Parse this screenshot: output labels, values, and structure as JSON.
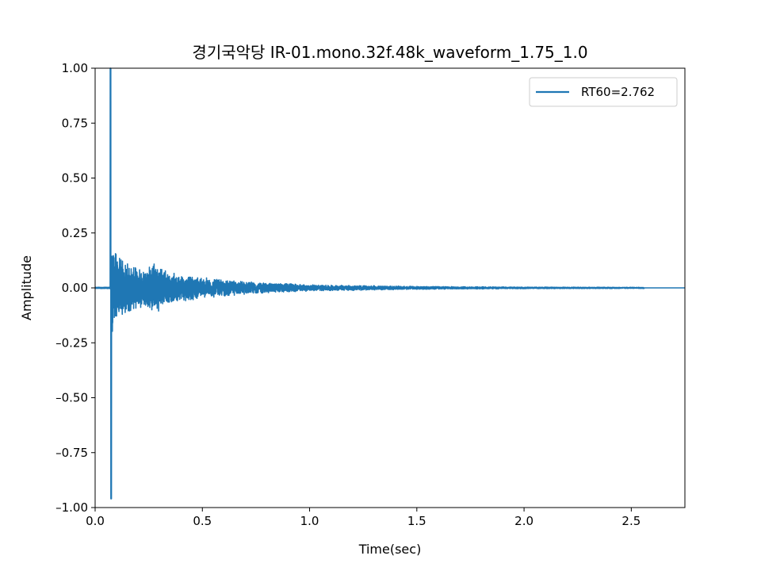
{
  "chart_data": {
    "type": "line",
    "title": "경기국악당 IR-01.mono.32f.48k_waveform_1.75_1.0",
    "xlabel": "Time(sec)",
    "ylabel": "Amplitude",
    "xlim": [
      0.0,
      2.75
    ],
    "ylim": [
      -1.0,
      1.0
    ],
    "x_ticks": [
      {
        "value": 0.0,
        "label": "0.0"
      },
      {
        "value": 0.5,
        "label": "0.5"
      },
      {
        "value": 1.0,
        "label": "1.0"
      },
      {
        "value": 1.5,
        "label": "1.5"
      },
      {
        "value": 2.0,
        "label": "2.0"
      },
      {
        "value": 2.5,
        "label": "2.5"
      }
    ],
    "y_ticks": [
      {
        "value": 1.0,
        "label": "1.00"
      },
      {
        "value": 0.75,
        "label": "0.75"
      },
      {
        "value": 0.5,
        "label": "0.50"
      },
      {
        "value": 0.25,
        "label": "0.25"
      },
      {
        "value": 0.0,
        "label": "0.00"
      },
      {
        "value": -0.25,
        "label": "–0.25"
      },
      {
        "value": -0.5,
        "label": "–0.50"
      },
      {
        "value": -0.75,
        "label": "–0.75"
      },
      {
        "value": -1.0,
        "label": "–1.00"
      }
    ],
    "grid": false,
    "legend_position": "top-right",
    "series": [
      {
        "name": "RT60=2.762",
        "color": "#1f77b4",
        "waveform": {
          "onset_time": 0.07,
          "peak_positive": 1.0,
          "peak_negative": -0.96,
          "noise_floor_amplitude": 0.003,
          "envelope": [
            {
              "t": 0.08,
              "amp": 0.24
            },
            {
              "t": 0.1,
              "amp": 0.16
            },
            {
              "t": 0.15,
              "amp": 0.12
            },
            {
              "t": 0.2,
              "amp": 0.09
            },
            {
              "t": 0.28,
              "amp": 0.12
            },
            {
              "t": 0.35,
              "amp": 0.07
            },
            {
              "t": 0.5,
              "amp": 0.05
            },
            {
              "t": 0.7,
              "amp": 0.03
            },
            {
              "t": 1.0,
              "amp": 0.015
            },
            {
              "t": 1.5,
              "amp": 0.007
            },
            {
              "t": 2.0,
              "amp": 0.004
            },
            {
              "t": 2.56,
              "amp": 0.003
            }
          ],
          "decay_end_time": 2.56,
          "end_time": 2.75
        }
      }
    ]
  }
}
